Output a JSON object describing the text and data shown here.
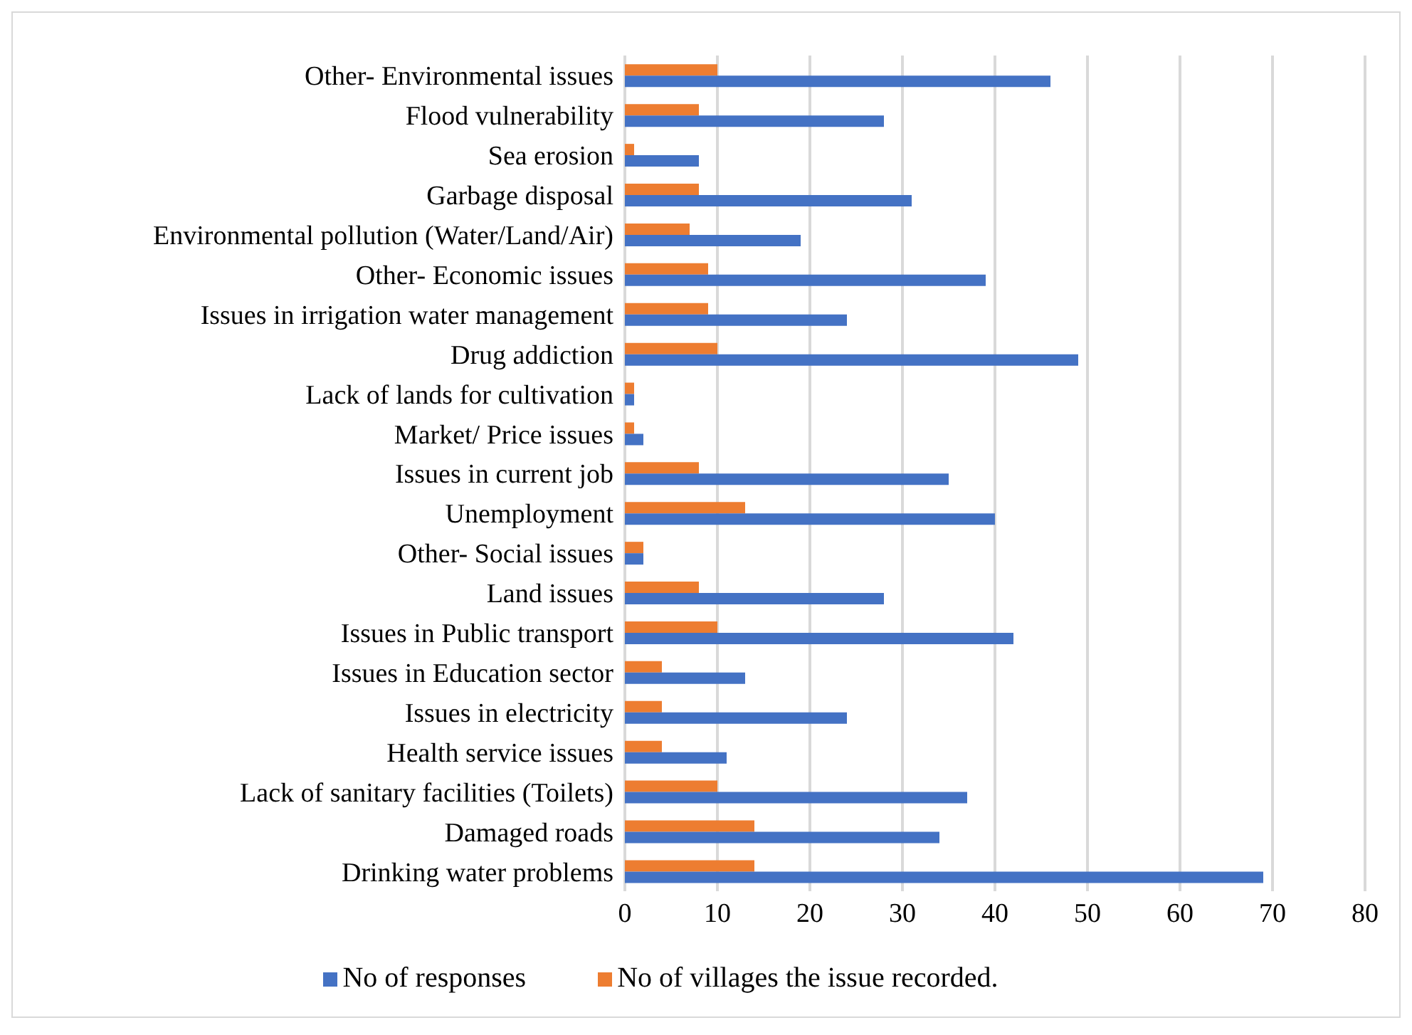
{
  "chart_data": {
    "type": "bar",
    "orientation": "horizontal",
    "categories": [
      "Other- Environmental issues",
      "Flood vulnerability",
      "Sea erosion",
      "Garbage disposal",
      "Environmental pollution (Water/Land/Air)",
      "Other- Economic issues",
      "Issues in irrigation water management",
      "Drug addiction",
      "Lack of lands for cultivation",
      "Market/ Price issues",
      "Issues in current job",
      "Unemployment",
      "Other- Social issues",
      "Land issues",
      "Issues in Public transport",
      "Issues in Education sector",
      "Issues in electricity",
      "Health service issues",
      "Lack of sanitary facilities (Toilets)",
      "Damaged roads",
      "Drinking water problems"
    ],
    "series": [
      {
        "name": "No of villages the issue recorded.",
        "color": "#ed7d31",
        "values": [
          10,
          8,
          1,
          8,
          7,
          9,
          9,
          10,
          1,
          1,
          8,
          13,
          2,
          8,
          10,
          4,
          4,
          4,
          10,
          14,
          14
        ]
      },
      {
        "name": "No of responses",
        "color": "#4472c4",
        "values": [
          46,
          28,
          8,
          31,
          19,
          39,
          24,
          49,
          1,
          2,
          35,
          40,
          2,
          28,
          42,
          13,
          24,
          11,
          37,
          34,
          69
        ]
      }
    ],
    "xlim": [
      0,
      80
    ],
    "xticks": [
      0,
      10,
      20,
      30,
      40,
      50,
      60,
      70,
      80
    ],
    "grid": "x",
    "legend": "bottom"
  }
}
